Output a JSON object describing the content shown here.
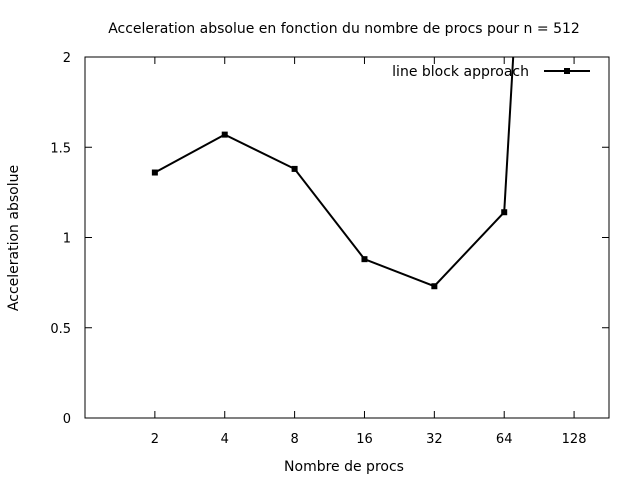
{
  "chart_data": {
    "type": "line",
    "title": "Acceleration absolue en fonction du nombre de procs pour n = 512",
    "xlabel": "Nombre de procs",
    "ylabel": "Acceleration absolue",
    "x_scale": "log2",
    "xlim": [
      1,
      181
    ],
    "ylim": [
      0,
      2
    ],
    "x_ticks": [
      2,
      4,
      8,
      16,
      32,
      64,
      128
    ],
    "x_tick_labels": [
      "2",
      "4",
      "8",
      "16",
      "32",
      "64",
      "128"
    ],
    "y_ticks": [
      0,
      0.5,
      1,
      1.5,
      2
    ],
    "y_tick_labels": [
      "0",
      "0.5",
      "1",
      "1.5",
      "2"
    ],
    "grid": false,
    "legend_position": "top-right",
    "series": [
      {
        "name": "line block approach",
        "color": "#000000",
        "marker": "filled-square",
        "x": [
          2,
          4,
          8,
          16,
          32,
          64,
          70
        ],
        "y": [
          1.36,
          1.57,
          1.38,
          0.88,
          0.73,
          1.14,
          2.0
        ],
        "marker_shown": [
          true,
          true,
          true,
          true,
          true,
          true,
          false
        ]
      }
    ]
  }
}
